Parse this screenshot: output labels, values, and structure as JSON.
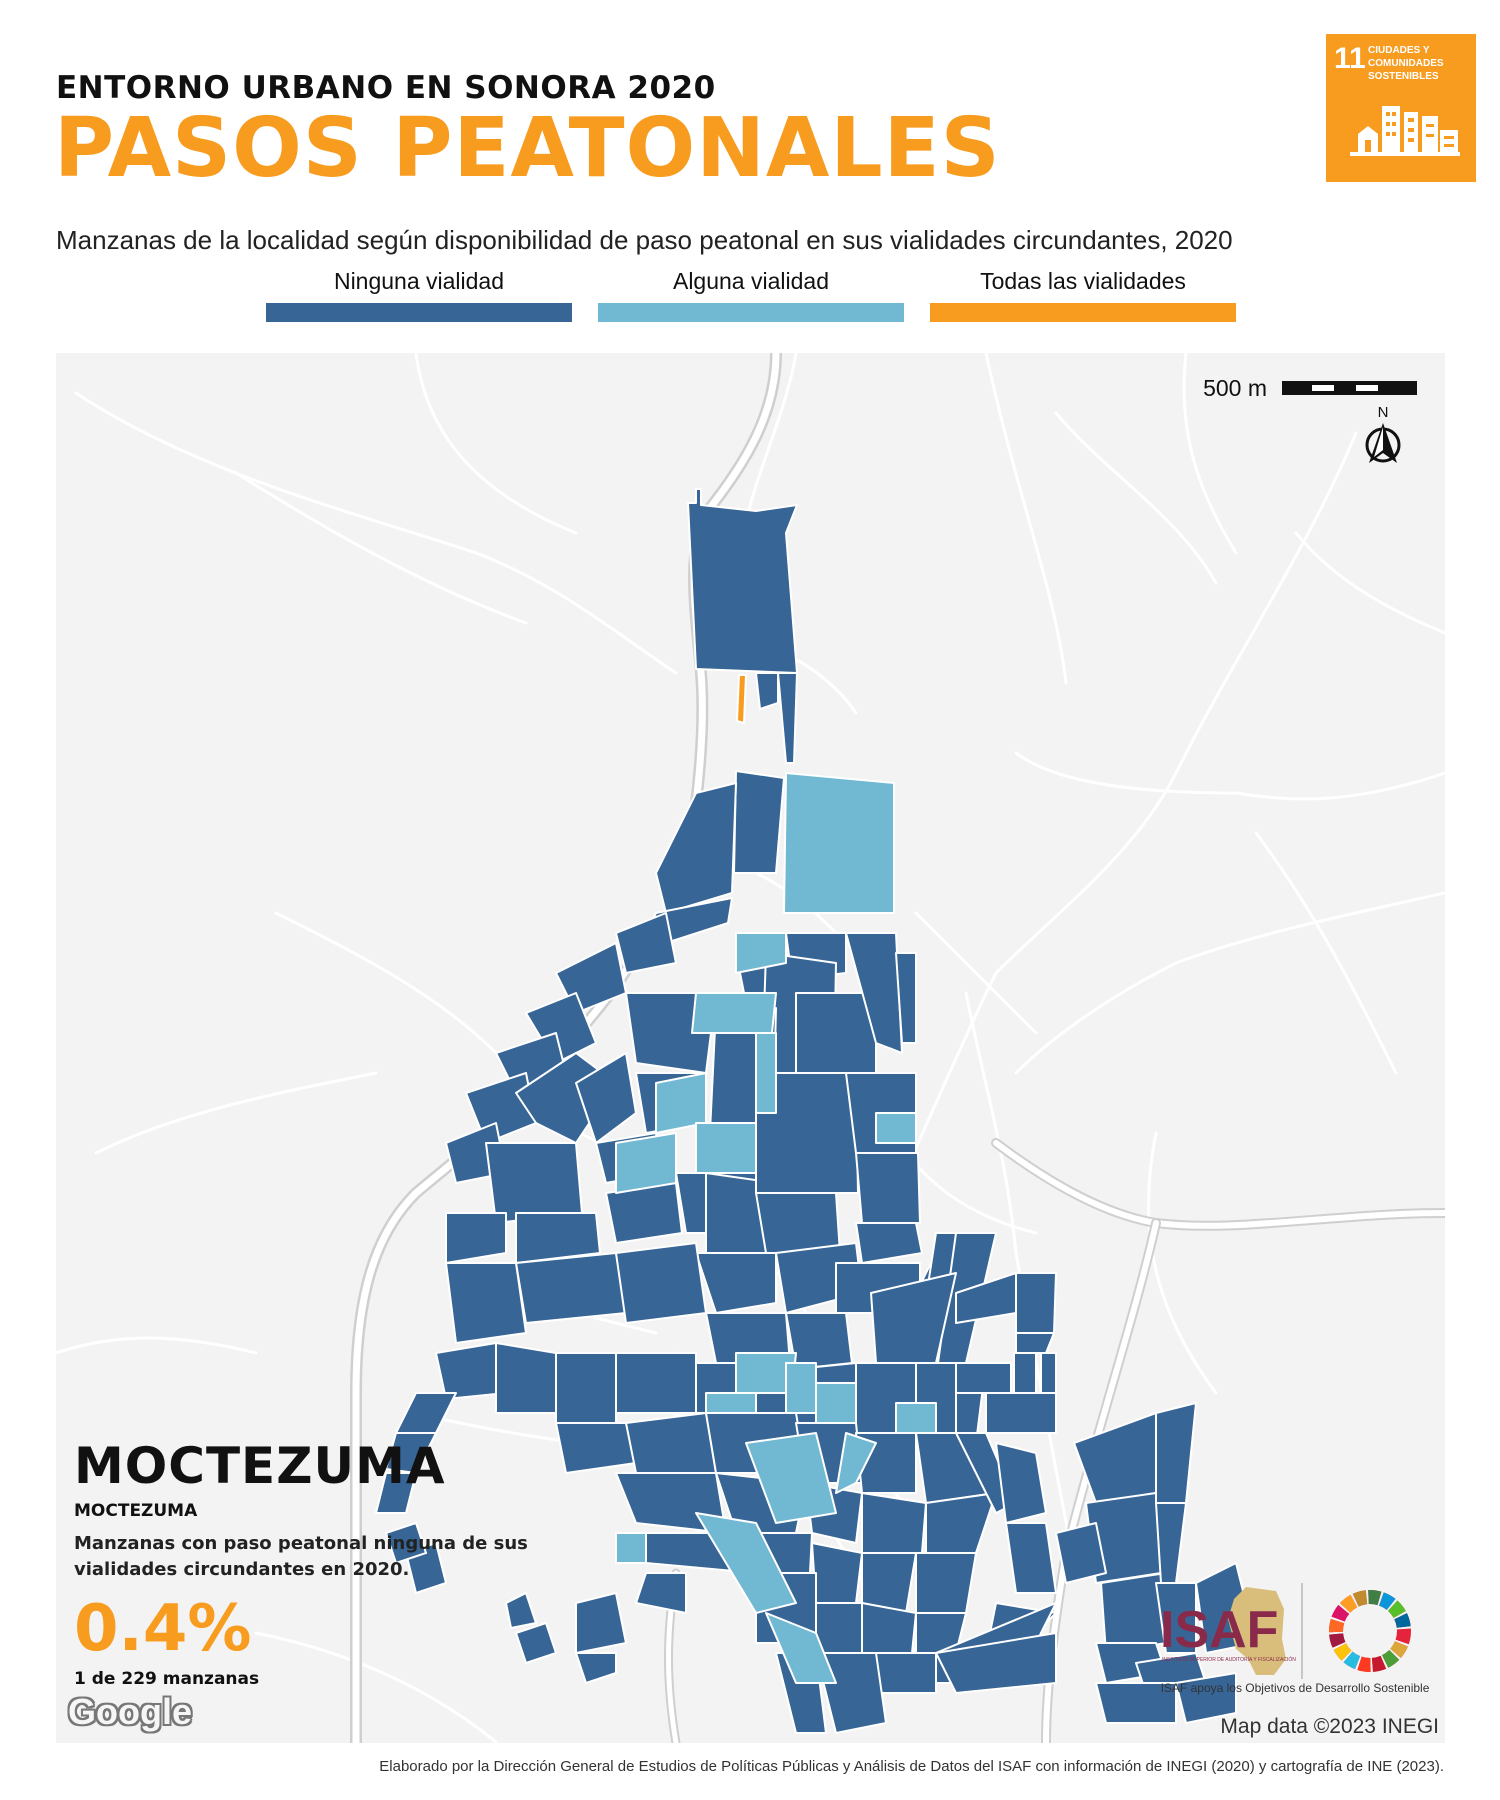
{
  "header": {
    "kicker": "ENTORNO URBANO EN SONORA 2020",
    "title": "PASOS PEATONALES",
    "subtitle": "Manzanas de la localidad según disponibilidad de paso peatonal en sus vialidades circundantes, 2020"
  },
  "legend": {
    "items": [
      {
        "label": "Ninguna vialidad",
        "color": "#376595"
      },
      {
        "label": "Alguna vialidad",
        "color": "#71b8d3"
      },
      {
        "label": "Todas las vialidades",
        "color": "#f89c20"
      }
    ]
  },
  "sdg_badge": {
    "number": "11",
    "text_line1": "CIUDADES Y",
    "text_line2": "COMUNIDADES",
    "text_line3": "SOSTENIBLES",
    "color": "#f89c20",
    "icon": "city-buildings-icon"
  },
  "map": {
    "scale_label": "500 m",
    "north_label": "N",
    "background_color": "#f3f3f3",
    "road_color": "#ffffff",
    "highway_color": "#c8c8c8",
    "attribution": "Map data ©2023 INEGI",
    "provider_logo": "Google"
  },
  "locality": {
    "name": "MOCTEZUMA",
    "municipality": "MOCTEZUMA",
    "description": "Manzanas con paso peatonal ninguna de sus vialidades circundantes en 2020.",
    "percentage": "0.4%",
    "count_text": "1 de 229 manzanas"
  },
  "logos": {
    "isaf_text": "ISAF",
    "isaf_small": "INSTITUTO SUPERIOR DE AUDITORÍA Y FISCALIZACIÓN",
    "caption": "ISAF apoya los Objetivos de Desarrollo Sostenible"
  },
  "footer": {
    "credit": "Elaborado por la Dirección General de Estudios de Políticas Públicas y Análisis de Datos del ISAF con información de INEGI (2020) y cartografía de INE (2023)."
  }
}
